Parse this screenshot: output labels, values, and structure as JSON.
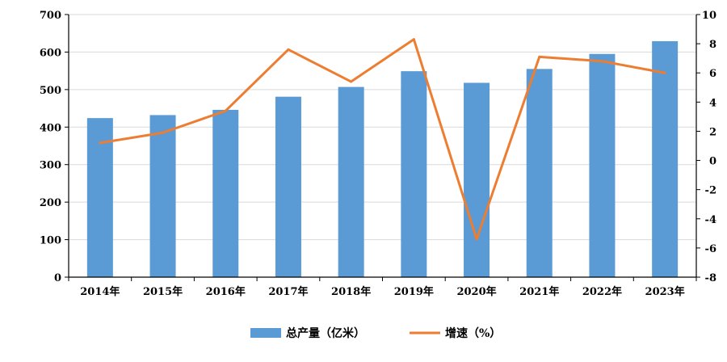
{
  "chart_data": {
    "type": "bar",
    "categories": [
      "2014年",
      "2015年",
      "2016年",
      "2017年",
      "2018年",
      "2019年",
      "2020年",
      "2021年",
      "2022年",
      "2023年"
    ],
    "series": [
      {
        "name": "总产量（亿米）",
        "type": "bar",
        "axis": "left",
        "color": "#5B9BD5",
        "values": [
          424,
          432,
          446,
          481,
          507,
          549,
          518,
          555,
          595,
          629
        ]
      },
      {
        "name": "增速（%）",
        "type": "line",
        "axis": "right",
        "color": "#ED7D31",
        "values": [
          1.2,
          1.9,
          3.4,
          7.6,
          5.4,
          8.3,
          -5.4,
          7.1,
          6.8,
          6.0
        ]
      }
    ],
    "y_left": {
      "min": 0,
      "max": 700,
      "step": 100,
      "ticks": [
        "0",
        "100",
        "200",
        "300",
        "400",
        "500",
        "600",
        "700"
      ]
    },
    "y_right": {
      "min": -8,
      "max": 10,
      "step": 2,
      "ticks": [
        "-8",
        "-6",
        "-4",
        "-2",
        "0",
        "2",
        "4",
        "6",
        "8",
        "10"
      ]
    },
    "legend": {
      "position": "bottom",
      "bar_label": "总产量（亿米）",
      "line_label": "增速（%）"
    },
    "grid": true
  }
}
